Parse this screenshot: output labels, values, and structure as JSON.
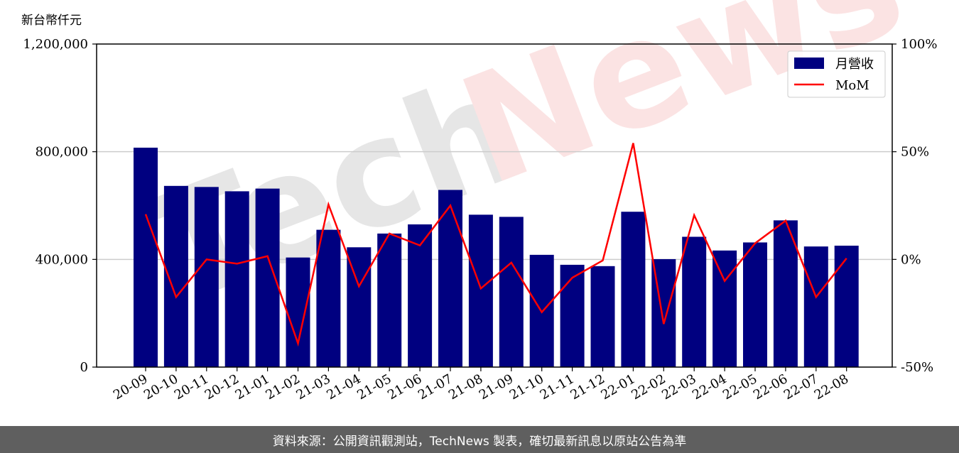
{
  "unit_label": "新台幣仟元",
  "footer_text": "資料來源：公開資訊觀測站，TechNews 製表，確切最新訊息以原站公告為準",
  "watermark": {
    "prefix": "Tech",
    "suffix": "News"
  },
  "colors": {
    "bar": "#000080",
    "line": "#ff0000",
    "grid": "#cccccc",
    "footer_bg": "#5f5f5f",
    "watermark_gray": "#e6e6e6",
    "watermark_red": "#fbe3e3"
  },
  "chart_data": {
    "type": "bar",
    "categories": [
      "20-09",
      "20-10",
      "20-11",
      "20-12",
      "21-01",
      "21-02",
      "21-03",
      "21-04",
      "21-05",
      "21-06",
      "21-07",
      "21-08",
      "21-09",
      "21-10",
      "21-11",
      "21-12",
      "22-01",
      "22-02",
      "22-03",
      "22-04",
      "22-05",
      "22-06",
      "22-07",
      "22-08"
    ],
    "series": [
      {
        "name": "月營收",
        "type": "bar",
        "axis": "left",
        "values": [
          815000,
          673000,
          669000,
          653000,
          663000,
          407000,
          510000,
          445000,
          496000,
          530000,
          658000,
          566000,
          558000,
          417000,
          380000,
          375000,
          577000,
          401000,
          484000,
          433000,
          463000,
          545000,
          448000,
          451000
        ]
      },
      {
        "name": "MoM",
        "type": "line",
        "axis": "right",
        "values": [
          21,
          -17.5,
          0,
          -2,
          1.5,
          -39,
          25.5,
          -12.5,
          12,
          6.5,
          25,
          -13.5,
          -1.5,
          -24.5,
          -8.5,
          -0.5,
          54,
          -30,
          20.5,
          -10,
          7.5,
          18,
          -17.5,
          0.5
        ]
      }
    ],
    "y_left": {
      "range": [
        0,
        1200000
      ],
      "ticks": [
        0,
        400000,
        800000,
        1200000
      ],
      "tick_labels": [
        "0",
        "400,000",
        "800,000",
        "1,200,000"
      ]
    },
    "y_right": {
      "range": [
        -50,
        100
      ],
      "ticks": [
        -50,
        0,
        50,
        100
      ],
      "tick_labels": [
        "-50%",
        "0%",
        "50%",
        "100%"
      ]
    },
    "grid": "horizontal",
    "legend": "top-right"
  }
}
